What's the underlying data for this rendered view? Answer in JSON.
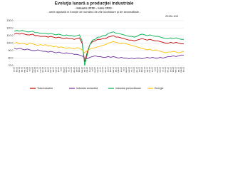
{
  "chart_data": {
    "type": "line",
    "title": "Evoluţia lunară a producţiei industriale",
    "subtitle": "- ianuarie 2018 – iunie 2023 -",
    "note": "- serie ajustată în funcţie de numărul de zile lucrătoare şi de sezonalitate -",
    "base": "2015=100",
    "categories": [
      "ian.18",
      "feb.18",
      "mar.18",
      "apr.18",
      "mai.18",
      "iun.18",
      "iul.18",
      "aug.18",
      "sep.18",
      "oct.18",
      "nov.18",
      "dec.18",
      "ian.19",
      "feb.19",
      "mar.19",
      "apr.19",
      "mai.19",
      "iun.19",
      "iul.19",
      "aug.19",
      "sep.19",
      "oct.19",
      "nov.19",
      "dec.19",
      "ian.20",
      "feb.20",
      "mar.20",
      "apr.20",
      "mai.20",
      "iun.20",
      "iul.20",
      "aug.20",
      "sep.20",
      "oct.20",
      "nov.20",
      "dec.20",
      "ian.21",
      "feb.21",
      "mar.21",
      "apr.21",
      "mai.21",
      "iun.21",
      "iul.21",
      "aug.21",
      "sep.21",
      "oct.21",
      "nov.21",
      "dec.21",
      "ian.22",
      "feb.22",
      "mar.22",
      "apr.22",
      "mai.22",
      "iun.22",
      "iul.22",
      "aug.22",
      "sep.22",
      "oct.22",
      "nov.22",
      "dec.22",
      "ian.23",
      "feb.23",
      "mar.23",
      "apr.23",
      "mai.23",
      "iun.23"
    ],
    "series": [
      {
        "name": "Total industrie",
        "color": "#c00000",
        "values": [
          112,
          113,
          112,
          113,
          112,
          111,
          111,
          112,
          110,
          110,
          109,
          109,
          109,
          108,
          109,
          108,
          107,
          108,
          107,
          106,
          107,
          106,
          106,
          105,
          106,
          107,
          100,
          75,
          88,
          98,
          102,
          103,
          105,
          105,
          106,
          106,
          108,
          109,
          110,
          108,
          108,
          107,
          106,
          105,
          104,
          104,
          103,
          104,
          105,
          106,
          105,
          104,
          105,
          104,
          103,
          103,
          102,
          101,
          100,
          100,
          101,
          100,
          101,
          100,
          99,
          99
        ]
      },
      {
        "name": "Industria extractivă",
        "color": "#7030a0",
        "values": [
          93,
          92,
          93,
          92,
          91,
          92,
          91,
          90,
          90,
          91,
          90,
          89,
          89,
          88,
          89,
          88,
          87,
          88,
          87,
          86,
          87,
          86,
          86,
          85,
          85,
          84,
          83,
          80,
          79,
          81,
          82,
          83,
          82,
          82,
          81,
          81,
          82,
          81,
          82,
          81,
          80,
          81,
          80,
          80,
          79,
          80,
          79,
          80,
          80,
          79,
          80,
          81,
          80,
          81,
          80,
          80,
          81,
          80,
          81,
          82,
          82,
          83,
          82,
          83,
          84,
          84
        ]
      },
      {
        "name": "Industria prelucrătoare",
        "color": "#00b050",
        "values": [
          116,
          117,
          116,
          117,
          116,
          115,
          115,
          116,
          114,
          114,
          113,
          113,
          113,
          112,
          113,
          112,
          111,
          112,
          111,
          110,
          111,
          110,
          110,
          109,
          110,
          111,
          103,
          70,
          85,
          98,
          104,
          105,
          108,
          108,
          110,
          110,
          113,
          114,
          115,
          113,
          113,
          112,
          111,
          110,
          109,
          109,
          108,
          109,
          111,
          112,
          111,
          110,
          111,
          110,
          109,
          109,
          108,
          107,
          106,
          106,
          107,
          106,
          107,
          106,
          105,
          105
        ]
      },
      {
        "name": "Energie",
        "color": "#ffc000",
        "values": [
          100,
          101,
          99,
          100,
          99,
          98,
          100,
          99,
          98,
          97,
          98,
          97,
          98,
          96,
          97,
          95,
          96,
          94,
          95,
          94,
          93,
          94,
          93,
          92,
          94,
          93,
          91,
          87,
          90,
          92,
          93,
          94,
          95,
          96,
          97,
          98,
          100,
          101,
          102,
          101,
          100,
          99,
          100,
          99,
          98,
          97,
          96,
          95,
          94,
          93,
          92,
          91,
          92,
          90,
          91,
          90,
          89,
          88,
          87,
          88,
          88,
          89,
          88,
          87,
          88,
          89
        ]
      }
    ],
    "ylim": [
      70,
      130
    ],
    "yticks": [
      {
        "value": 70,
        "label": "70.0"
      },
      {
        "value": 80,
        "label": "80.0"
      },
      {
        "value": 90,
        "label": "90.0"
      },
      {
        "value": 100,
        "label": "100.0"
      },
      {
        "value": 110,
        "label": "110.0"
      },
      {
        "value": 120,
        "label": "120.0"
      },
      {
        "value": 130,
        "label": "130.0"
      }
    ],
    "grid": true
  }
}
